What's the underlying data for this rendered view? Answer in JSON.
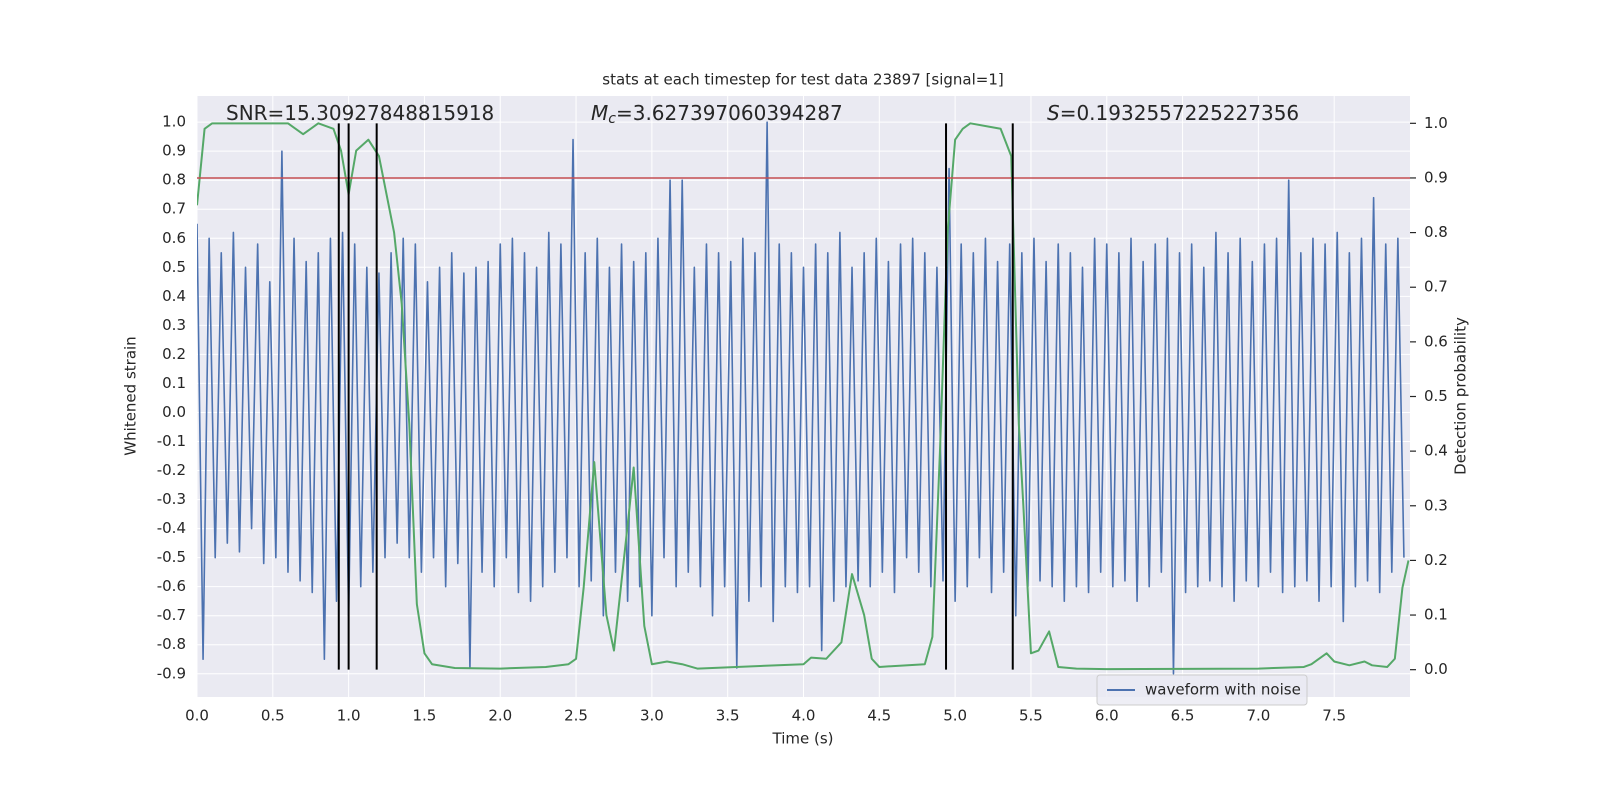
{
  "chart_data": {
    "type": "line",
    "title": "stats at each timestep for test data 23897 [signal=1]",
    "xlabel": "Time (s)",
    "ylabel": "Whitened strain",
    "y2label": "Detection probability",
    "annotations": [
      {
        "text": "SNR=15.30927848815918"
      },
      {
        "symbol": "M",
        "sub": "c",
        "text": "=3.627397060394287"
      },
      {
        "symbol": "S",
        "text": "=0.1932557225227356"
      }
    ],
    "xlim": [
      0,
      8
    ],
    "ylim": [
      -0.98,
      1.09
    ],
    "y2lim": [
      -0.05,
      1.05
    ],
    "xticks": [
      {
        "value": 0,
        "label": "0.0"
      },
      0.5,
      {
        "value": 1,
        "label": "1.0"
      },
      1.5,
      {
        "value": 2,
        "label": "2.0"
      },
      2.5,
      {
        "value": 3,
        "label": "3.0"
      },
      3.5,
      {
        "value": 4,
        "label": "4.0"
      },
      4.5,
      {
        "value": 5,
        "label": "5.0"
      },
      5.5,
      {
        "value": 6,
        "label": "6.0"
      },
      6.5,
      {
        "value": 7,
        "label": "7.0"
      },
      7.5
    ],
    "yticks": [
      -0.9,
      -0.8,
      -0.7,
      -0.6,
      -0.5,
      -0.4,
      -0.3,
      -0.2,
      -0.1,
      {
        "value": 0,
        "label": "0.0"
      },
      0.1,
      0.2,
      0.3,
      0.4,
      0.5,
      0.6,
      0.7,
      0.8,
      0.9,
      {
        "value": 1,
        "label": "1.0"
      }
    ],
    "y2ticks": [
      {
        "value": 0,
        "label": "0.0"
      },
      0.1,
      0.2,
      0.3,
      0.4,
      0.5,
      0.6,
      0.7,
      0.8,
      0.9,
      {
        "value": 1,
        "label": "1.0"
      }
    ],
    "grid": true,
    "legend": "lower right",
    "series": [
      {
        "name": "waveform with noise",
        "color": "#4c72b0",
        "axis": "y",
        "x": [
          0,
          0.04,
          0.08,
          0.12,
          0.16,
          0.2,
          0.24,
          0.28,
          0.32,
          0.36,
          0.4,
          0.44,
          0.48,
          0.52,
          0.56,
          0.6,
          0.64,
          0.68,
          0.72,
          0.76,
          0.8,
          0.84,
          0.88,
          0.92,
          0.96,
          1,
          1.04,
          1.08,
          1.12,
          1.16,
          1.2,
          1.24,
          1.28,
          1.32,
          1.36,
          1.4,
          1.44,
          1.48,
          1.52,
          1.56,
          1.6,
          1.64,
          1.68,
          1.72,
          1.76,
          1.8,
          1.84,
          1.88,
          1.92,
          1.96,
          2,
          2.04,
          2.08,
          2.12,
          2.16,
          2.2,
          2.24,
          2.28,
          2.32,
          2.36,
          2.4,
          2.44,
          2.48,
          2.52,
          2.56,
          2.6,
          2.64,
          2.68,
          2.72,
          2.76,
          2.8,
          2.84,
          2.88,
          2.92,
          2.96,
          3,
          3.04,
          3.08,
          3.12,
          3.16,
          3.2,
          3.24,
          3.28,
          3.32,
          3.36,
          3.4,
          3.44,
          3.48,
          3.52,
          3.56,
          3.6,
          3.64,
          3.68,
          3.72,
          3.76,
          3.8,
          3.84,
          3.88,
          3.92,
          3.96,
          4,
          4.04,
          4.08,
          4.12,
          4.16,
          4.2,
          4.24,
          4.28,
          4.32,
          4.36,
          4.4,
          4.44,
          4.48,
          4.52,
          4.56,
          4.6,
          4.64,
          4.68,
          4.72,
          4.76,
          4.8,
          4.84,
          4.88,
          4.92,
          4.96,
          5,
          5.04,
          5.08,
          5.12,
          5.16,
          5.2,
          5.24,
          5.28,
          5.32,
          5.36,
          5.4,
          5.44,
          5.48,
          5.52,
          5.56,
          5.6,
          5.64,
          5.68,
          5.72,
          5.76,
          5.8,
          5.84,
          5.88,
          5.92,
          5.96,
          6,
          6.04,
          6.08,
          6.12,
          6.16,
          6.2,
          6.24,
          6.28,
          6.32,
          6.36,
          6.4,
          6.44,
          6.48,
          6.52,
          6.56,
          6.6,
          6.64,
          6.68,
          6.72,
          6.76,
          6.8,
          6.84,
          6.88,
          6.92,
          6.96,
          7,
          7.04,
          7.08,
          7.12,
          7.16,
          7.2,
          7.24,
          7.28,
          7.32,
          7.36,
          7.4,
          7.44,
          7.48,
          7.52,
          7.56,
          7.6,
          7.64,
          7.68,
          7.72,
          7.76,
          7.8,
          7.84,
          7.88,
          7.92,
          7.96
        ],
        "values": [
          0.65,
          -0.85,
          0.6,
          -0.5,
          0.55,
          -0.45,
          0.62,
          -0.48,
          0.5,
          -0.4,
          0.58,
          -0.52,
          0.45,
          -0.5,
          0.9,
          -0.55,
          0.6,
          -0.58,
          0.52,
          -0.62,
          0.55,
          -0.85,
          0.6,
          -0.65,
          0.62,
          -0.7,
          0.58,
          -0.6,
          0.5,
          -0.55,
          0.48,
          -0.5,
          0.55,
          -0.45,
          0.6,
          -0.5,
          0.58,
          -0.55,
          0.45,
          -0.5,
          0.5,
          -0.6,
          0.55,
          -0.52,
          0.48,
          -0.88,
          0.5,
          -0.55,
          0.52,
          -0.6,
          0.58,
          -0.5,
          0.6,
          -0.62,
          0.55,
          -0.65,
          0.5,
          -0.6,
          0.62,
          -0.55,
          0.58,
          -0.5,
          0.94,
          -0.6,
          0.55,
          -0.58,
          0.6,
          -0.7,
          0.5,
          -0.55,
          0.58,
          -0.65,
          0.52,
          -0.6,
          0.55,
          -0.7,
          0.6,
          -0.5,
          0.8,
          -0.6,
          0.8,
          -0.55,
          0.5,
          -0.6,
          0.58,
          -0.7,
          0.55,
          -0.6,
          0.52,
          -0.88,
          0.6,
          -0.65,
          0.55,
          -0.6,
          1.0,
          -0.72,
          0.58,
          -0.6,
          0.55,
          -0.62,
          0.5,
          -0.6,
          0.58,
          -0.82,
          0.55,
          -0.65,
          0.62,
          -0.6,
          0.5,
          -0.58,
          0.55,
          -0.6,
          0.6,
          -0.55,
          0.52,
          -0.62,
          0.58,
          -0.5,
          0.6,
          -0.55,
          0.55,
          -0.6,
          0.5,
          -0.58,
          0.84,
          -0.65,
          0.58,
          -0.6,
          0.55,
          -0.5,
          0.6,
          -0.62,
          0.52,
          -0.55,
          0.58,
          -0.7,
          0.55,
          -0.6,
          0.6,
          -0.58,
          0.52,
          -0.6,
          0.58,
          -0.65,
          0.55,
          -0.6,
          0.5,
          -0.62,
          0.6,
          -0.55,
          0.58,
          -0.6,
          0.55,
          -0.58,
          0.6,
          -0.65,
          0.52,
          -0.6,
          0.58,
          -0.55,
          0.6,
          -0.9,
          0.55,
          -0.62,
          0.58,
          -0.6,
          0.5,
          -0.58,
          0.62,
          -0.6,
          0.55,
          -0.65,
          0.6,
          -0.58,
          0.52,
          -0.6,
          0.58,
          -0.55,
          0.6,
          -0.62,
          0.8,
          -0.6,
          0.55,
          -0.58,
          0.6,
          -0.65,
          0.58,
          -0.6,
          0.62,
          -0.72,
          0.55,
          -0.6,
          0.6,
          -0.58,
          0.74,
          -0.62,
          0.58,
          -0.55,
          0.6,
          -0.5
        ]
      },
      {
        "color": "#55a868",
        "axis": "y2",
        "x": [
          0,
          0.05,
          0.1,
          0.2,
          0.4,
          0.6,
          0.7,
          0.8,
          0.9,
          0.95,
          1.0,
          1.05,
          1.13,
          1.2,
          1.3,
          1.35,
          1.4,
          1.45,
          1.5,
          1.55,
          1.7,
          2.0,
          2.3,
          2.45,
          2.5,
          2.55,
          2.62,
          2.7,
          2.75,
          2.85,
          2.88,
          2.95,
          3.0,
          3.1,
          3.2,
          3.3,
          4.0,
          4.05,
          4.15,
          4.25,
          4.32,
          4.4,
          4.45,
          4.5,
          4.8,
          4.85,
          4.9,
          4.95,
          5.0,
          5.05,
          5.1,
          5.3,
          5.37,
          5.42,
          5.45,
          5.5,
          5.55,
          5.62,
          5.68,
          5.8,
          6.0,
          7.0,
          7.3,
          7.35,
          7.45,
          7.5,
          7.6,
          7.7,
          7.75,
          7.85,
          7.9,
          7.95,
          7.99
        ],
        "values": [
          0.85,
          0.99,
          1.0,
          1.0,
          1.0,
          1.0,
          0.98,
          1.0,
          0.99,
          0.95,
          0.87,
          0.95,
          0.97,
          0.94,
          0.8,
          0.67,
          0.45,
          0.12,
          0.03,
          0.01,
          0.003,
          0.002,
          0.005,
          0.01,
          0.02,
          0.15,
          0.38,
          0.1,
          0.035,
          0.29,
          0.37,
          0.08,
          0.01,
          0.015,
          0.01,
          0.002,
          0.01,
          0.022,
          0.02,
          0.05,
          0.175,
          0.1,
          0.02,
          0.005,
          0.01,
          0.06,
          0.4,
          0.8,
          0.97,
          0.99,
          1.0,
          0.99,
          0.94,
          0.45,
          0.3,
          0.03,
          0.035,
          0.07,
          0.005,
          0.002,
          0.001,
          0.002,
          0.005,
          0.01,
          0.03,
          0.015,
          0.008,
          0.015,
          0.008,
          0.005,
          0.02,
          0.15,
          0.2
        ]
      }
    ],
    "threshold": {
      "value": 0.9,
      "axis": "y2",
      "color": "#c44e52"
    },
    "vlines": {
      "x": [
        0.935,
        1.0,
        1.185,
        4.94,
        5.38
      ],
      "y2range": [
        0,
        1
      ],
      "color": "#000000"
    }
  }
}
